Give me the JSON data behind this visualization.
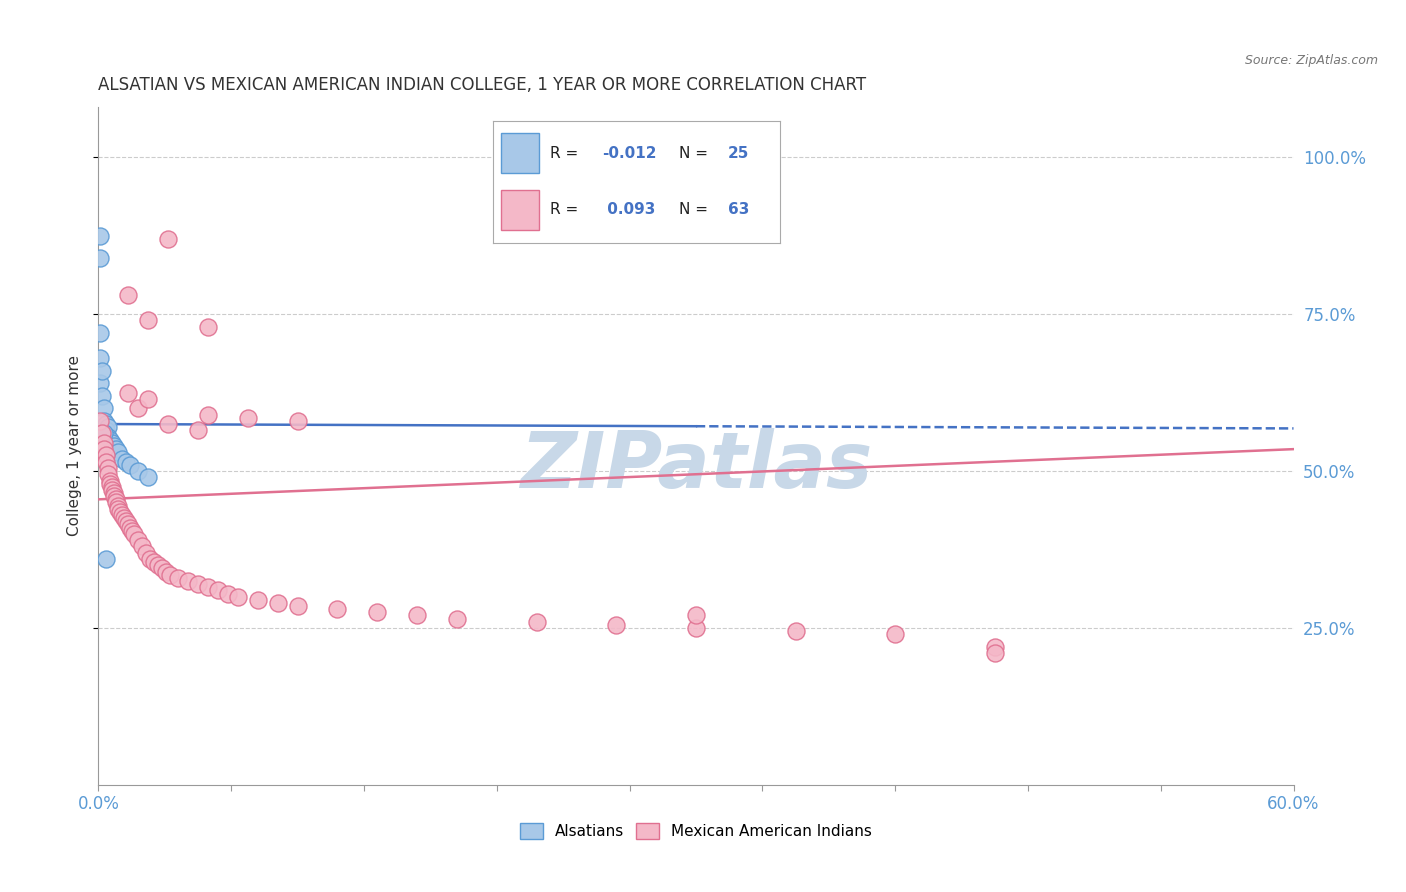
{
  "title": "ALSATIAN VS MEXICAN AMERICAN INDIAN COLLEGE, 1 YEAR OR MORE CORRELATION CHART",
  "source": "Source: ZipAtlas.com",
  "ylabel": "College, 1 year or more",
  "right_ytick_labels": [
    "100.0%",
    "75.0%",
    "50.0%",
    "25.0%"
  ],
  "right_ytick_values": [
    1.0,
    0.75,
    0.5,
    0.25
  ],
  "alsatian_color": "#a8c8e8",
  "alsatian_edge_color": "#5b9bd5",
  "mexican_color": "#f4b8c8",
  "mexican_edge_color": "#e07090",
  "blue_line_color": "#4472c4",
  "pink_line_color": "#e07090",
  "grid_color": "#cccccc",
  "background_color": "#ffffff",
  "watermark_color": "#c8d8e8",
  "R_alsatian": -0.012,
  "N_alsatian": 25,
  "R_mexican": 0.093,
  "N_mexican": 63,
  "blue_line_solid_end": 0.3,
  "blue_line_y0": 0.575,
  "blue_line_y1": 0.568,
  "pink_line_y0": 0.455,
  "pink_line_y1": 0.535,
  "xlim": [
    0.0,
    0.6
  ],
  "ylim": [
    0.0,
    1.08
  ],
  "alsatian_x": [
    0.001,
    0.001,
    0.002,
    0.002,
    0.003,
    0.003,
    0.004,
    0.004,
    0.005,
    0.005,
    0.006,
    0.007,
    0.008,
    0.009,
    0.01,
    0.012,
    0.014,
    0.016,
    0.02,
    0.025,
    0.001,
    0.001,
    0.001,
    0.003,
    0.004
  ],
  "alsatian_y": [
    0.68,
    0.64,
    0.66,
    0.62,
    0.6,
    0.58,
    0.575,
    0.565,
    0.57,
    0.555,
    0.55,
    0.545,
    0.54,
    0.535,
    0.53,
    0.52,
    0.515,
    0.51,
    0.5,
    0.49,
    0.875,
    0.84,
    0.72,
    0.56,
    0.36
  ],
  "mexican_x": [
    0.001,
    0.002,
    0.003,
    0.003,
    0.004,
    0.004,
    0.005,
    0.005,
    0.006,
    0.006,
    0.007,
    0.007,
    0.008,
    0.008,
    0.009,
    0.009,
    0.01,
    0.01,
    0.011,
    0.012,
    0.013,
    0.014,
    0.015,
    0.016,
    0.017,
    0.018,
    0.02,
    0.022,
    0.024,
    0.026,
    0.028,
    0.03,
    0.032,
    0.034,
    0.036,
    0.04,
    0.045,
    0.05,
    0.055,
    0.06,
    0.065,
    0.07,
    0.08,
    0.09,
    0.1,
    0.12,
    0.14,
    0.16,
    0.18,
    0.22,
    0.26,
    0.3,
    0.35,
    0.4,
    0.02,
    0.035,
    0.05,
    0.015,
    0.025,
    0.055,
    0.075,
    0.1,
    0.45
  ],
  "mexican_y": [
    0.58,
    0.56,
    0.545,
    0.535,
    0.525,
    0.515,
    0.505,
    0.495,
    0.485,
    0.48,
    0.475,
    0.47,
    0.465,
    0.46,
    0.455,
    0.45,
    0.445,
    0.44,
    0.435,
    0.43,
    0.425,
    0.42,
    0.415,
    0.41,
    0.405,
    0.4,
    0.39,
    0.38,
    0.37,
    0.36,
    0.355,
    0.35,
    0.345,
    0.34,
    0.335,
    0.33,
    0.325,
    0.32,
    0.315,
    0.31,
    0.305,
    0.3,
    0.295,
    0.29,
    0.285,
    0.28,
    0.275,
    0.27,
    0.265,
    0.26,
    0.255,
    0.25,
    0.245,
    0.24,
    0.6,
    0.575,
    0.565,
    0.625,
    0.615,
    0.59,
    0.585,
    0.58,
    0.22
  ],
  "mexican_outlier_x": [
    0.035,
    0.015,
    0.025,
    0.055,
    0.3,
    0.45
  ],
  "mexican_outlier_y": [
    0.87,
    0.78,
    0.74,
    0.73,
    0.27,
    0.21
  ]
}
